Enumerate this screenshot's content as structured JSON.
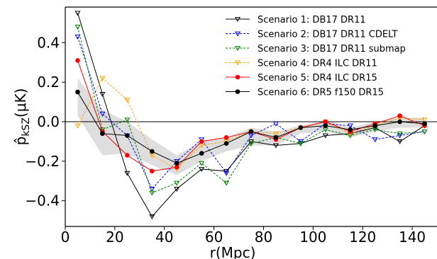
{
  "chart_data": {
    "type": "line",
    "xlabel": "r(Mpc)",
    "ylabel": "p̂",
    "ylabel_sub": "kSZ",
    "ylabel_unit": "(μK)",
    "xlim": [
      0,
      150
    ],
    "ylim": [
      -0.53,
      0.58
    ],
    "xticks": [
      0,
      20,
      40,
      60,
      80,
      100,
      120,
      140
    ],
    "xtick_labels": [
      "0",
      "20",
      "40",
      "60",
      "80",
      "100",
      "120",
      "140"
    ],
    "yticks": [
      0.4,
      0.2,
      0.0,
      -0.2,
      -0.4
    ],
    "ytick_labels": [
      "0.4",
      "0.2",
      "0.0",
      "−0.2",
      "−0.4"
    ],
    "grid": false,
    "legend_position": "top-right",
    "zero_line": true,
    "x": [
      5,
      15,
      25,
      35,
      45,
      55,
      65,
      75,
      85,
      95,
      105,
      115,
      125,
      135,
      145
    ],
    "band": {
      "color": "#c8c8c8",
      "upper": [
        0.22,
        0.06,
        0.0,
        -0.09,
        -0.17,
        -0.1,
        -0.08,
        -0.03,
        -0.05,
        -0.02,
        0.01,
        -0.03,
        0.0,
        0.02,
        0.02
      ],
      "lower": [
        0.03,
        -0.17,
        -0.16,
        -0.22,
        -0.27,
        -0.2,
        -0.15,
        -0.12,
        -0.12,
        -0.06,
        -0.05,
        -0.08,
        -0.05,
        -0.03,
        -0.03
      ]
    },
    "series": [
      {
        "name": "Scenario 1: DB17 DR11",
        "color": "#000000",
        "dash": "solid",
        "marker": "tri-down",
        "values": [
          0.55,
          0.14,
          -0.26,
          -0.48,
          -0.34,
          -0.24,
          -0.25,
          -0.1,
          -0.12,
          -0.11,
          -0.07,
          -0.06,
          -0.03,
          -0.1,
          -0.02
        ]
      },
      {
        "name": "Scenario 2: DB17 DR11 CDELT",
        "color": "#0000ff",
        "dash": "dashed",
        "marker": "tri-down",
        "values": [
          0.43,
          0.04,
          -0.07,
          -0.34,
          -0.2,
          -0.09,
          -0.26,
          -0.07,
          -0.01,
          -0.1,
          -0.01,
          -0.02,
          -0.09,
          -0.07,
          -0.05
        ]
      },
      {
        "name": "Scenario 3: DB17 DR11 submap",
        "color": "#008000",
        "dash": "dashed",
        "marker": "tri-down",
        "values": [
          0.48,
          -0.04,
          0.01,
          -0.36,
          -0.31,
          -0.21,
          -0.31,
          -0.11,
          -0.08,
          -0.11,
          -0.04,
          -0.07,
          -0.04,
          -0.06,
          -0.05
        ]
      },
      {
        "name": "Scenario 4: DR4 ILC DR11",
        "color": "#ffa500",
        "dash": "dashed",
        "marker": "tri-down",
        "values": [
          -0.02,
          0.22,
          0.11,
          -0.17,
          -0.24,
          -0.12,
          -0.1,
          -0.05,
          -0.06,
          -0.03,
          0.0,
          -0.06,
          -0.02,
          0.02,
          0.01
        ]
      },
      {
        "name": "Scenario 5: DR4 ILC DR15",
        "color": "#ff0000",
        "dash": "solid",
        "marker": "circle",
        "values": [
          0.31,
          -0.05,
          -0.17,
          -0.25,
          -0.23,
          -0.1,
          -0.08,
          -0.05,
          -0.09,
          -0.03,
          0.0,
          -0.05,
          -0.01,
          0.03,
          -0.02
        ]
      },
      {
        "name": "Scenario 6: DR5 f150 DR15",
        "color": "#000000",
        "dash": "solid",
        "marker": "circle",
        "values": [
          0.15,
          -0.06,
          -0.07,
          -0.15,
          -0.21,
          -0.16,
          -0.11,
          -0.05,
          -0.08,
          -0.03,
          -0.02,
          -0.04,
          -0.02,
          0.0,
          -0.01
        ]
      }
    ]
  }
}
